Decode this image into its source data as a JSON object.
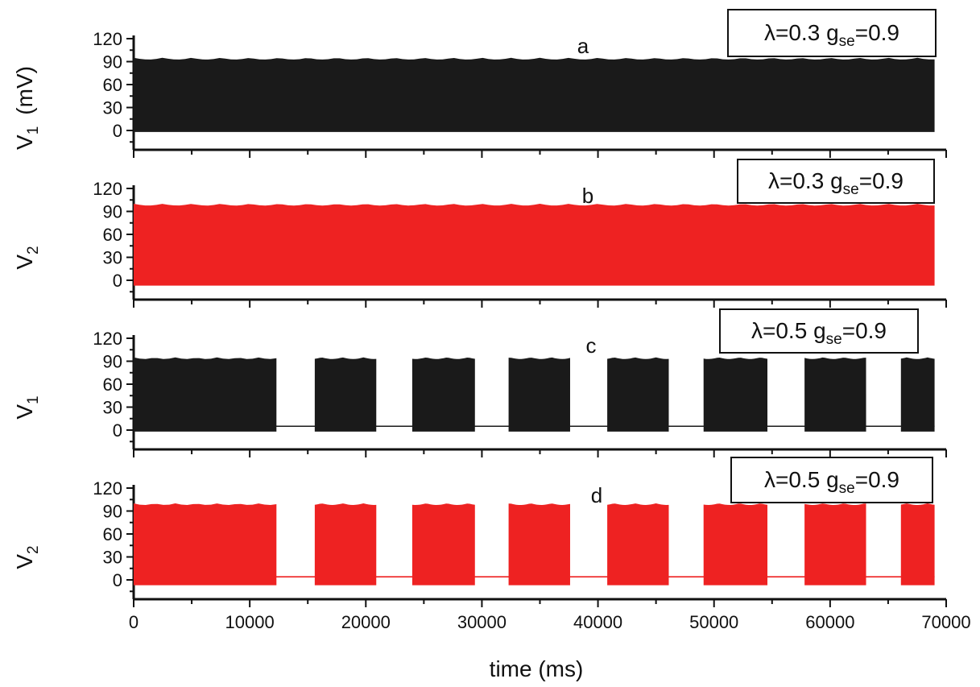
{
  "figure": {
    "xlabel": "time (ms)"
  },
  "chart_data": [
    {
      "type": "line",
      "panel": "a",
      "ylabel_main": "V",
      "ylabel_sub": "1",
      "ylabel_unit": "(mV)",
      "yticks": [
        "120",
        "90",
        "60",
        "30",
        "0"
      ],
      "ylim": [
        -10,
        130
      ],
      "xlim": [
        0,
        70000
      ],
      "legend": {
        "lambda_label": "λ",
        "lambda": "=0.3",
        "g_label": "g",
        "g_sub": "se",
        "g_value": "=0.9"
      },
      "series_color": "#1a1a1a",
      "signal": {
        "kind": "continuous",
        "t_start": 0,
        "t_end": 69000,
        "v_min": -2,
        "v_max": 95,
        "rest": null
      },
      "bursts": []
    },
    {
      "type": "line",
      "panel": "b",
      "ylabel_main": "V",
      "ylabel_sub": "2",
      "ylabel_unit": "",
      "yticks": [
        "120",
        "90",
        "60",
        "30",
        "0"
      ],
      "ylim": [
        -10,
        130
      ],
      "xlim": [
        0,
        70000
      ],
      "legend": {
        "lambda_label": "λ",
        "lambda": "=0.3",
        "g_label": "g",
        "g_sub": "se",
        "g_value": "=0.9"
      },
      "series_color": "#ee2222",
      "signal": {
        "kind": "continuous",
        "t_start": 0,
        "t_end": 69000,
        "v_min": -7,
        "v_max": 100,
        "rest": null
      },
      "bursts": []
    },
    {
      "type": "line",
      "panel": "c",
      "ylabel_main": "V",
      "ylabel_sub": "1",
      "ylabel_unit": "",
      "yticks": [
        "120",
        "90",
        "60",
        "30",
        "0"
      ],
      "ylim": [
        -10,
        130
      ],
      "xlim": [
        0,
        70000
      ],
      "legend": {
        "lambda_label": "λ",
        "lambda": "=0.5",
        "g_label": "g",
        "g_sub": "se",
        "g_value": "=0.9"
      },
      "series_color": "#1a1a1a",
      "signal": {
        "kind": "bursting",
        "t_start": 0,
        "t_end": 69000,
        "v_min": -2,
        "v_max": 95,
        "rest": 5
      },
      "bursts": [
        [
          0,
          12300
        ],
        [
          15600,
          20900
        ],
        [
          24000,
          29400
        ],
        [
          32300,
          37600
        ],
        [
          40800,
          46100
        ],
        [
          49100,
          54600
        ],
        [
          57800,
          63100
        ],
        [
          66100,
          69000
        ]
      ]
    },
    {
      "type": "line",
      "panel": "d",
      "ylabel_main": "V",
      "ylabel_sub": "2",
      "ylabel_unit": "",
      "yticks": [
        "120",
        "90",
        "60",
        "30",
        "0"
      ],
      "ylim": [
        -10,
        130
      ],
      "xlim": [
        0,
        70000
      ],
      "legend": {
        "lambda_label": "λ",
        "lambda": "=0.5",
        "g_label": "g",
        "g_sub": "se",
        "g_value": "=0.9"
      },
      "series_color": "#ee2222",
      "signal": {
        "kind": "bursting",
        "t_start": 0,
        "t_end": 69000,
        "v_min": -7,
        "v_max": 100,
        "rest": 4
      },
      "bursts": [
        [
          0,
          12300
        ],
        [
          15600,
          20900
        ],
        [
          24000,
          29400
        ],
        [
          32300,
          37600
        ],
        [
          40800,
          46100
        ],
        [
          49100,
          54600
        ],
        [
          57800,
          63100
        ],
        [
          66100,
          69000
        ]
      ]
    }
  ],
  "xaxis": {
    "ticks": [
      {
        "value": 0,
        "label": "0"
      },
      {
        "value": 10000,
        "label": "10000"
      },
      {
        "value": 20000,
        "label": "20000"
      },
      {
        "value": 30000,
        "label": "30000"
      },
      {
        "value": 40000,
        "label": "40000"
      },
      {
        "value": 50000,
        "label": "50000"
      },
      {
        "value": 60000,
        "label": "60000"
      },
      {
        "value": 70000,
        "label": "70000"
      }
    ]
  }
}
